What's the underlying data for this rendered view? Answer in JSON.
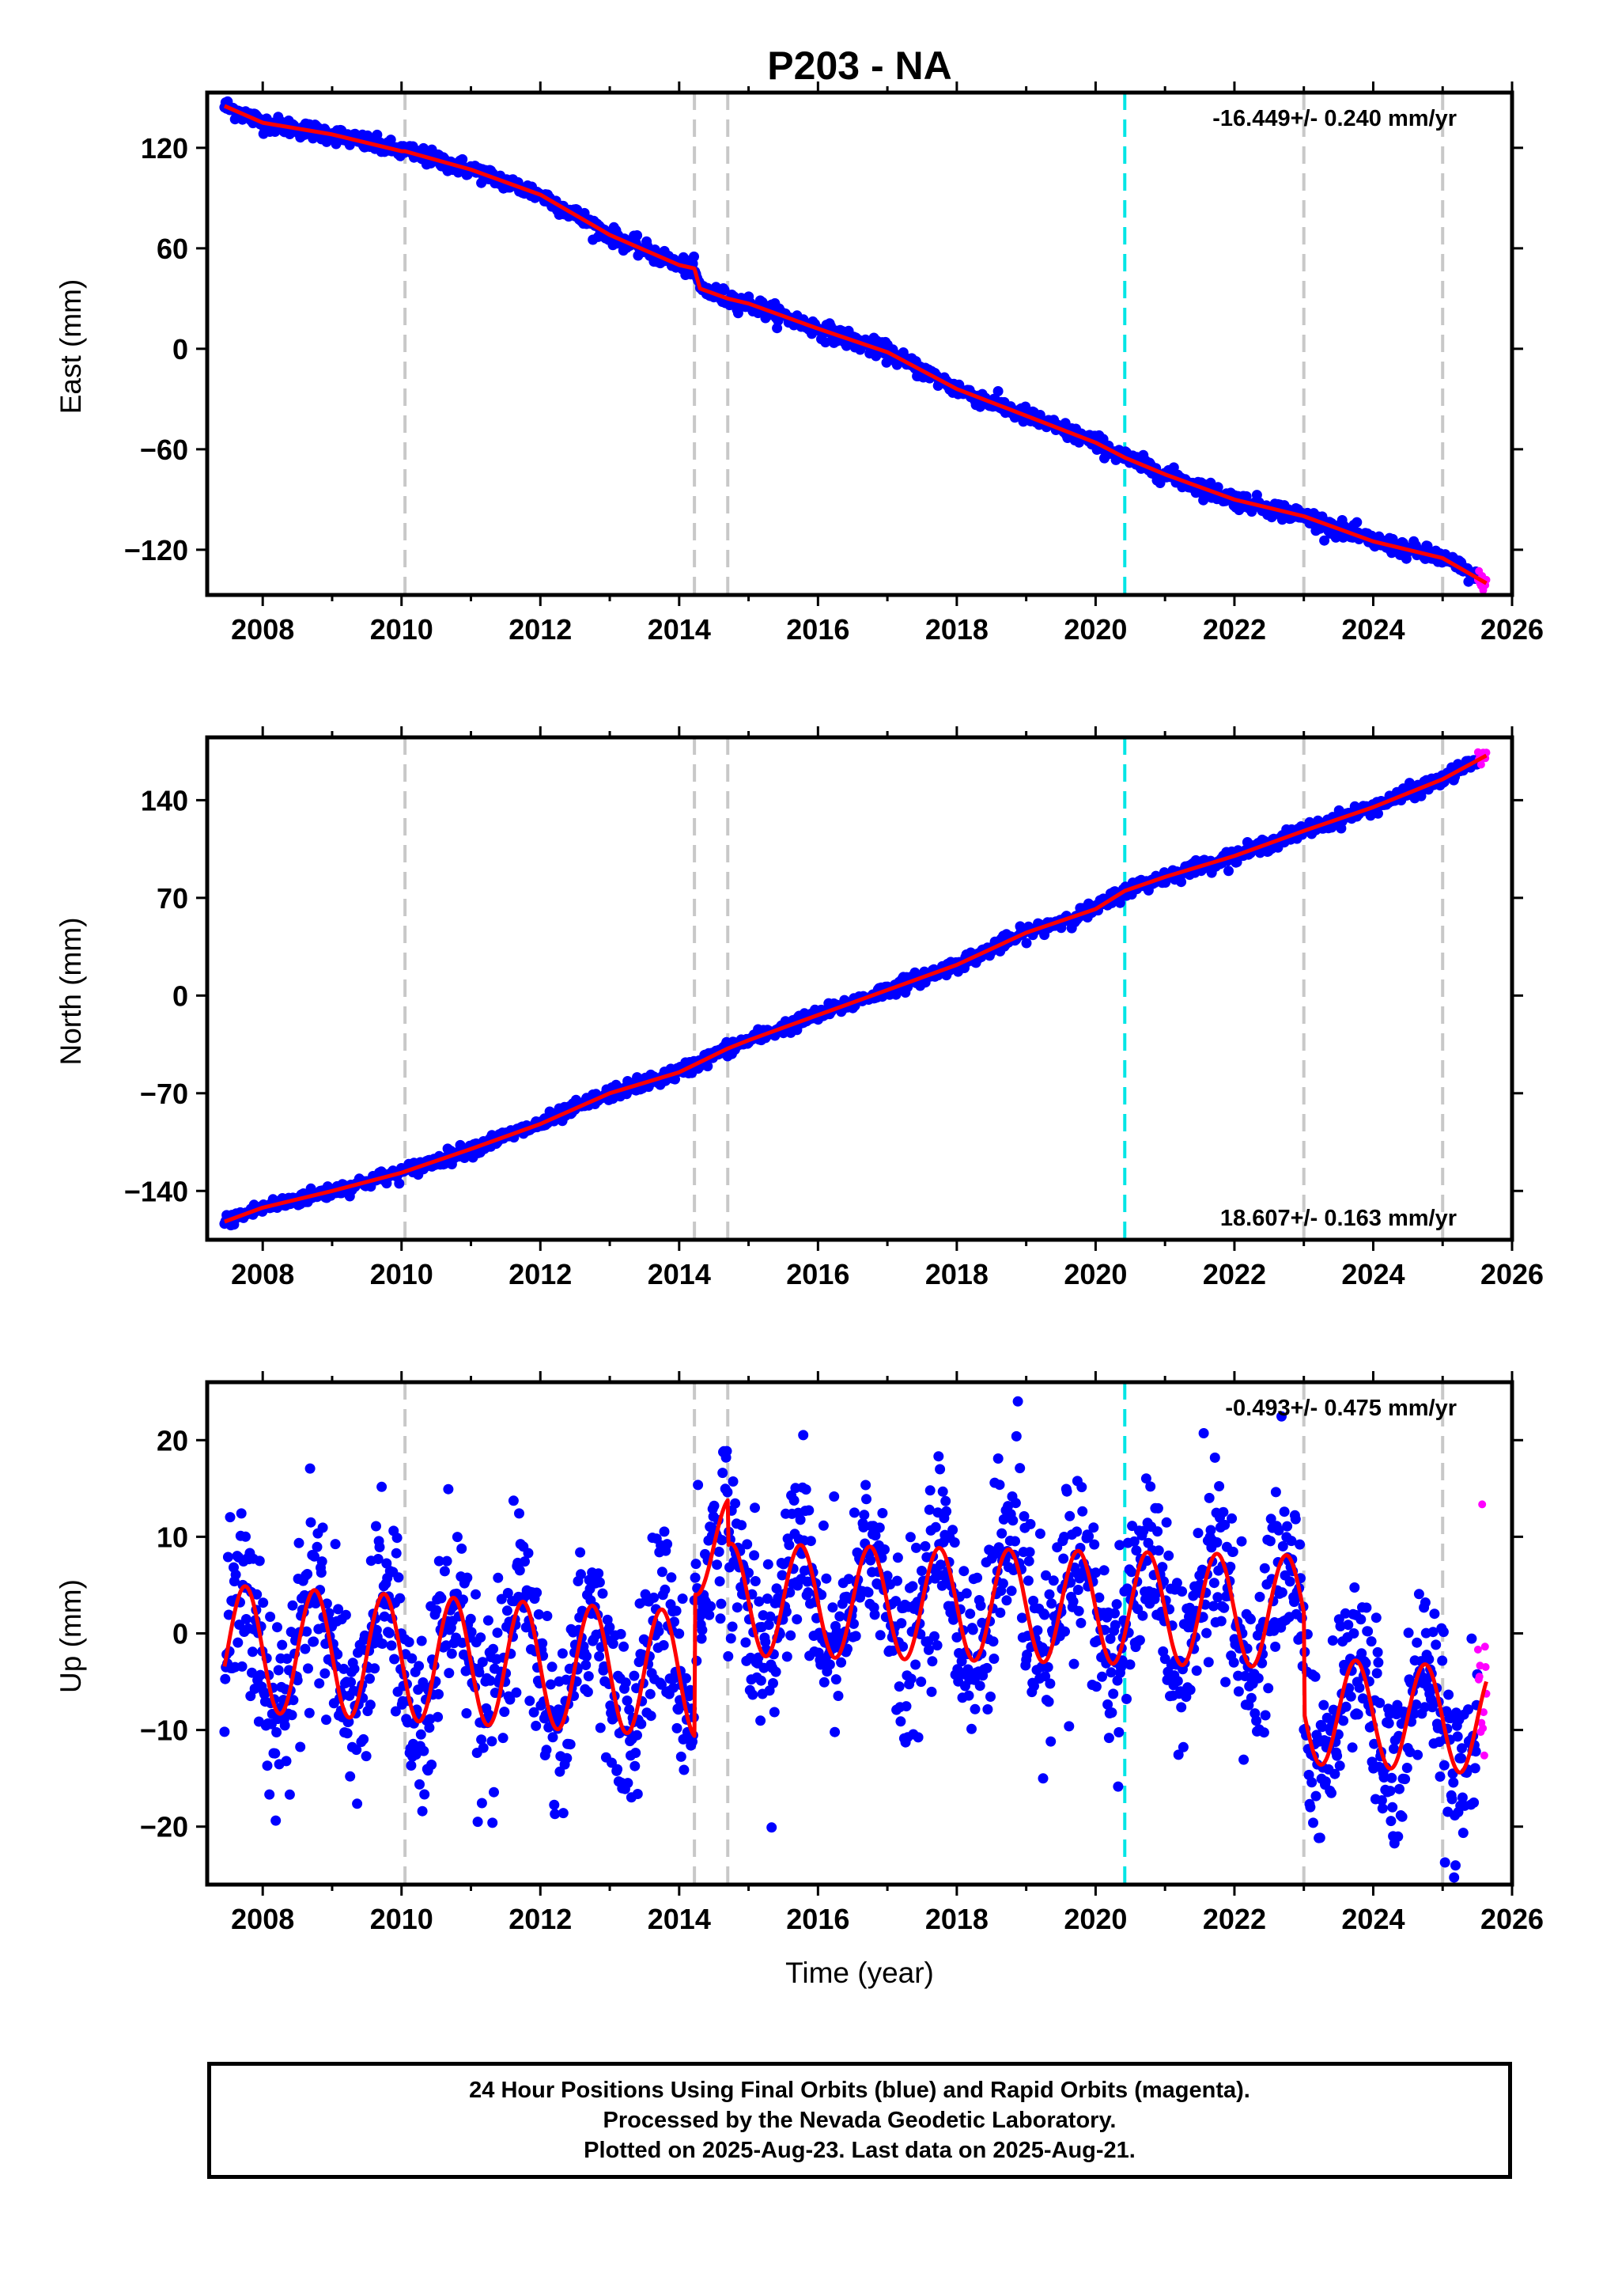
{
  "chart_data": {
    "type": "scatter",
    "title": "P203 - NA",
    "xlabel": "Time (year)",
    "x_ticks": [
      2008,
      2010,
      2012,
      2014,
      2016,
      2018,
      2020,
      2022,
      2024,
      2026
    ],
    "xlim": [
      2007.2,
      2026.0
    ],
    "data_start": 2007.45,
    "data_end": 2025.63,
    "rapid_start": 2025.5,
    "colors": {
      "final": "#0000ff",
      "rapid": "#ff00ff",
      "model": "#ff0000",
      "step": "#c8c8c8",
      "equipment": "#00e5e5"
    },
    "step_lines": [
      2010.05,
      2014.22,
      2014.7,
      2023.0,
      2025.0
    ],
    "equipment_lines": [
      2020.42
    ],
    "footer_lines": [
      "24 Hour Positions Using Final Orbits (blue) and Rapid Orbits (magenta).",
      "Processed by the Nevada Geodetic Laboratory.",
      "Plotted on 2025-Aug-23. Last data on 2025-Aug-21."
    ],
    "panels": [
      {
        "ylabel": "East (mm)",
        "ylim": [
          -147,
          153
        ],
        "y_ticks": [
          -120,
          -60,
          0,
          60,
          120
        ],
        "rate_text": "-16.449+/- 0.240 mm/yr",
        "rate_position": "top-right",
        "trace": [
          [
            2007.45,
            145
          ],
          [
            2008,
            135
          ],
          [
            2009,
            128
          ],
          [
            2010,
            118
          ],
          [
            2010.05,
            118
          ],
          [
            2011,
            107
          ],
          [
            2012,
            92
          ],
          [
            2013,
            68
          ],
          [
            2014,
            50
          ],
          [
            2014.22,
            48
          ],
          [
            2014.3,
            36
          ],
          [
            2014.7,
            30
          ],
          [
            2015,
            27
          ],
          [
            2016,
            12
          ],
          [
            2017,
            -2
          ],
          [
            2018,
            -24
          ],
          [
            2019,
            -40
          ],
          [
            2020,
            -56
          ],
          [
            2020.42,
            -65
          ],
          [
            2021,
            -75
          ],
          [
            2022,
            -90
          ],
          [
            2023,
            -100
          ],
          [
            2024,
            -115
          ],
          [
            2025,
            -125
          ],
          [
            2025.63,
            -140
          ]
        ],
        "noise_mm": 2.5
      },
      {
        "ylabel": "North (mm)",
        "ylim": [
          -175,
          185
        ],
        "y_ticks": [
          -140,
          -70,
          0,
          70,
          140
        ],
        "rate_text": "18.607+/- 0.163 mm/yr",
        "rate_position": "bottom-right",
        "trace": [
          [
            2007.45,
            -162
          ],
          [
            2008,
            -152
          ],
          [
            2009,
            -140
          ],
          [
            2010,
            -127
          ],
          [
            2011,
            -110
          ],
          [
            2012,
            -92
          ],
          [
            2013,
            -70
          ],
          [
            2014,
            -55
          ],
          [
            2014.7,
            -38
          ],
          [
            2015,
            -32
          ],
          [
            2016,
            -14
          ],
          [
            2017,
            4
          ],
          [
            2018,
            22
          ],
          [
            2019,
            45
          ],
          [
            2020,
            62
          ],
          [
            2020.42,
            75
          ],
          [
            2021,
            85
          ],
          [
            2022,
            100
          ],
          [
            2023,
            118
          ],
          [
            2024,
            135
          ],
          [
            2025,
            155
          ],
          [
            2025.63,
            172
          ]
        ],
        "noise_mm": 2.5
      },
      {
        "ylabel": "Up (mm)",
        "ylim": [
          -26,
          26
        ],
        "y_ticks": [
          -20,
          -10,
          0,
          10,
          20
        ],
        "rate_text": "-0.493+/- 0.475 mm/yr",
        "rate_position": "top-right",
        "model_segments": [
          {
            "start": 2007.45,
            "end": 2014.22,
            "offset": -1.5,
            "amplitude": 6.5,
            "drift": -0.4
          },
          {
            "start": 2014.22,
            "end": 2014.7,
            "offset": 9.0,
            "amplitude": 5.0,
            "drift": 0
          },
          {
            "start": 2014.7,
            "end": 2023.0,
            "offset": 3.5,
            "amplitude": 5.8,
            "drift": -0.15
          },
          {
            "start": 2023.0,
            "end": 2025.63,
            "offset": -8.0,
            "amplitude": 5.5,
            "drift": -0.4
          }
        ],
        "noise_mm": 4.5
      }
    ]
  }
}
